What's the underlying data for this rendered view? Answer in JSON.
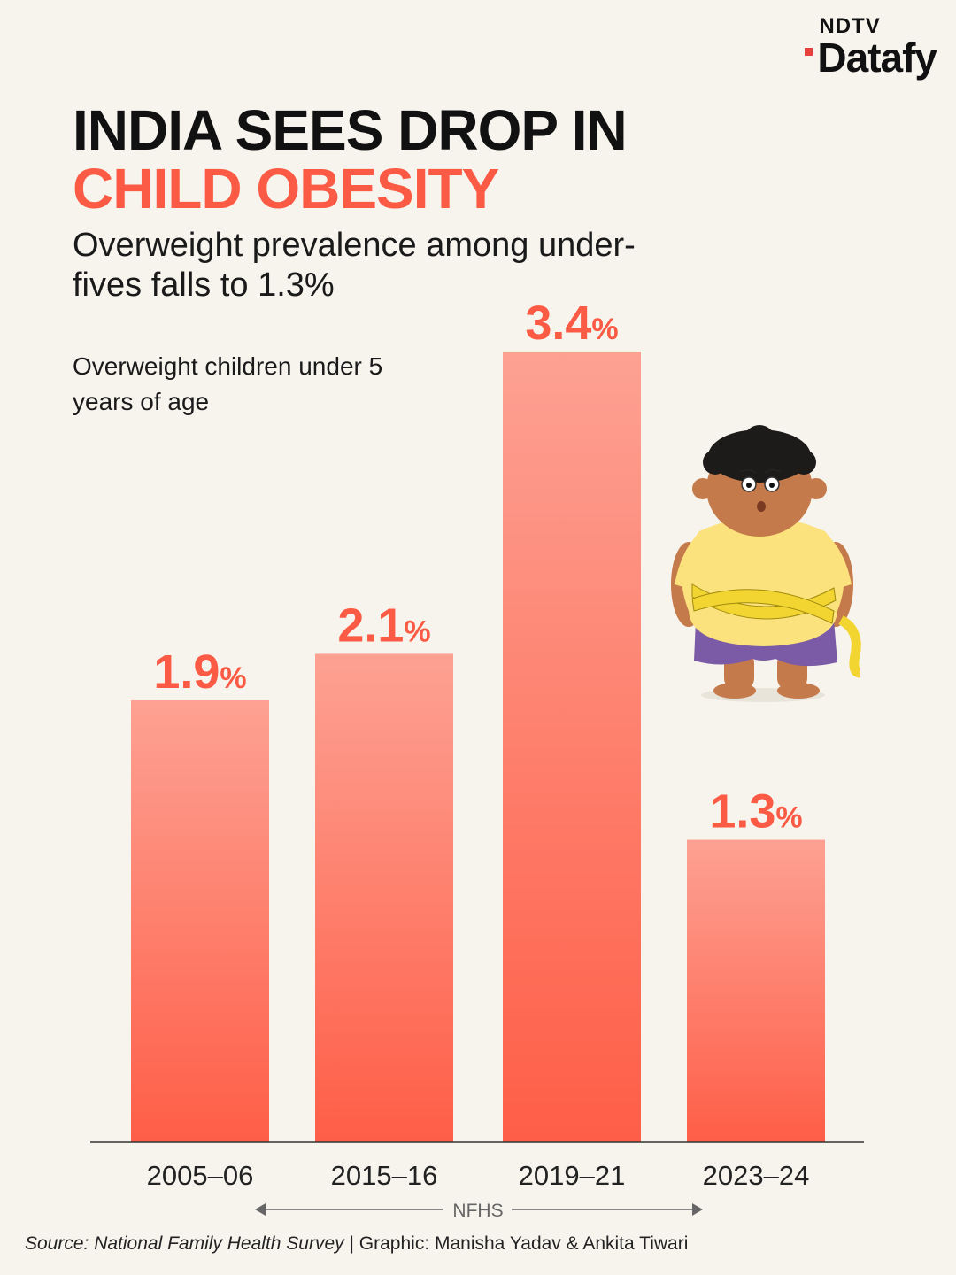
{
  "logo": {
    "top": "NDTV",
    "main": "Datafy"
  },
  "title": {
    "line1": "INDIA SEES DROP IN",
    "line2": "CHILD OBESITY"
  },
  "subtitle": "Overweight prevalence among under-fives falls to 1.3%",
  "note": "Overweight children under 5 years of age",
  "source": {
    "label": "Source: National Family Health Survey",
    "credit": "| Graphic: Manisha Yadav & Ankita Tiwari"
  },
  "colors": {
    "accent": "#fb5a44",
    "bar_top": "#fda193",
    "bar_bottom": "#fe5e47",
    "text": "#111111",
    "axis": "#333333"
  },
  "illustration": "overweight-child-with-measuring-tape",
  "chart_data": {
    "type": "bar",
    "categories": [
      "2005–06",
      "2015–16",
      "2019–21",
      "2023–24"
    ],
    "values": [
      1.9,
      2.1,
      3.4,
      1.3
    ],
    "value_suffix": "%",
    "ylim": [
      0,
      3.4
    ],
    "grid": false,
    "group_label": "NFHS"
  }
}
